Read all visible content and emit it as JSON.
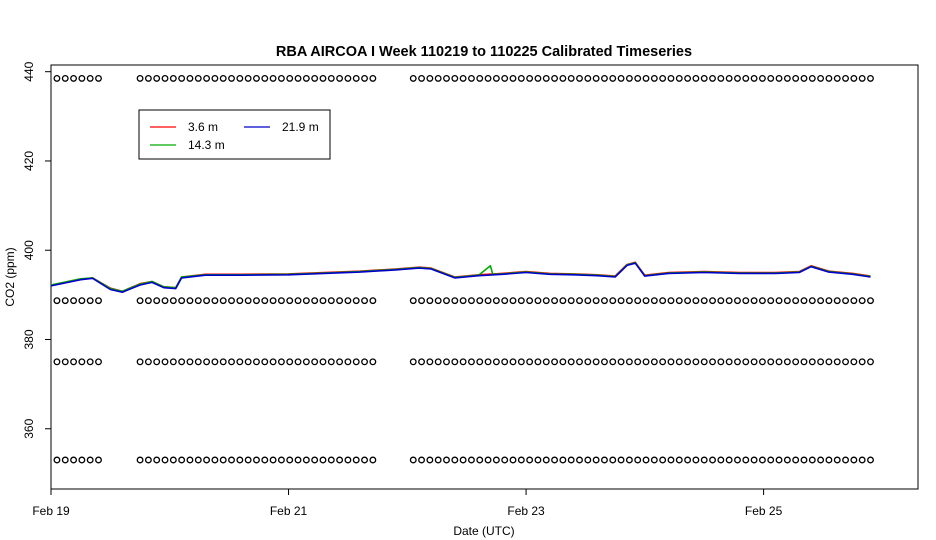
{
  "chart_data": {
    "type": "line",
    "title": "RBA AIRCOA I  Week 110219 to 110225  Calibrated Timeseries",
    "xlabel": "Date (UTC)",
    "ylabel": "CO2 (ppm)",
    "xlim": [
      0,
      7.3
    ],
    "ylim": [
      346.5,
      441.5
    ],
    "x_ticks": [
      {
        "value": 0,
        "label": "Feb 19"
      },
      {
        "value": 2,
        "label": "Feb 21"
      },
      {
        "value": 4,
        "label": "Feb 23"
      },
      {
        "value": 6,
        "label": "Feb 25"
      }
    ],
    "y_ticks": [
      {
        "value": 360,
        "label": "360"
      },
      {
        "value": 380,
        "label": "380"
      },
      {
        "value": 400,
        "label": "400"
      },
      {
        "value": 420,
        "label": "420"
      },
      {
        "value": 440,
        "label": "440"
      }
    ],
    "legend": {
      "placement": "top-left",
      "entries": [
        {
          "label": "3.6 m",
          "color": "#ff0000"
        },
        {
          "label": "21.9 m",
          "color": "#0000cc"
        },
        {
          "label": "14.3 m",
          "color": "#00aa00"
        }
      ]
    },
    "series": [
      {
        "name": "3.6 m",
        "color": "#ff0000",
        "points": [
          [
            0,
            392.2
          ],
          [
            0.25,
            393.5
          ],
          [
            0.35,
            393.8
          ],
          [
            0.5,
            391.5
          ],
          [
            0.6,
            390.8
          ],
          [
            0.75,
            392.5
          ],
          [
            0.85,
            393.0
          ],
          [
            0.95,
            391.8
          ],
          [
            1.05,
            391.6
          ],
          [
            1.1,
            394.0
          ],
          [
            1.3,
            394.6
          ],
          [
            1.6,
            394.6
          ],
          [
            2.0,
            394.7
          ],
          [
            2.3,
            395.0
          ],
          [
            2.6,
            395.3
          ],
          [
            2.9,
            395.8
          ],
          [
            3.1,
            396.2
          ],
          [
            3.2,
            396.0
          ],
          [
            3.4,
            394.0
          ],
          [
            3.6,
            394.5
          ],
          [
            3.8,
            394.8
          ],
          [
            4.0,
            395.2
          ],
          [
            4.2,
            394.8
          ],
          [
            4.4,
            394.7
          ],
          [
            4.6,
            394.5
          ],
          [
            4.75,
            394.2
          ],
          [
            4.85,
            396.8
          ],
          [
            4.92,
            397.3
          ],
          [
            5.0,
            394.4
          ],
          [
            5.2,
            395.0
          ],
          [
            5.5,
            395.2
          ],
          [
            5.8,
            395.0
          ],
          [
            6.1,
            395.0
          ],
          [
            6.3,
            395.2
          ],
          [
            6.4,
            396.5
          ],
          [
            6.55,
            395.3
          ],
          [
            6.75,
            394.8
          ],
          [
            6.9,
            394.2
          ]
        ]
      },
      {
        "name": "14.3 m",
        "color": "#00aa00",
        "points": [
          [
            0,
            392.2
          ],
          [
            0.25,
            393.6
          ],
          [
            0.35,
            393.8
          ],
          [
            0.5,
            391.4
          ],
          [
            0.6,
            390.8
          ],
          [
            0.75,
            392.4
          ],
          [
            0.85,
            393.0
          ],
          [
            0.95,
            391.8
          ],
          [
            1.05,
            391.6
          ],
          [
            1.1,
            394.0
          ],
          [
            1.3,
            394.5
          ],
          [
            1.6,
            394.5
          ],
          [
            2.0,
            394.6
          ],
          [
            2.3,
            394.9
          ],
          [
            2.6,
            395.2
          ],
          [
            2.9,
            395.7
          ],
          [
            3.1,
            396.1
          ],
          [
            3.2,
            395.9
          ],
          [
            3.4,
            393.9
          ],
          [
            3.6,
            394.4
          ],
          [
            3.7,
            396.5
          ],
          [
            3.72,
            394.6
          ],
          [
            3.8,
            394.7
          ],
          [
            4.0,
            395.1
          ],
          [
            4.2,
            394.7
          ],
          [
            4.4,
            394.6
          ],
          [
            4.6,
            394.4
          ],
          [
            4.75,
            394.1
          ],
          [
            4.85,
            396.7
          ],
          [
            4.92,
            397.2
          ],
          [
            5.0,
            394.3
          ],
          [
            5.2,
            394.9
          ],
          [
            5.5,
            395.1
          ],
          [
            5.8,
            394.9
          ],
          [
            6.1,
            394.9
          ],
          [
            6.3,
            395.1
          ],
          [
            6.4,
            396.4
          ],
          [
            6.55,
            395.2
          ],
          [
            6.75,
            394.7
          ],
          [
            6.9,
            394.1
          ]
        ]
      },
      {
        "name": "21.9 m",
        "color": "#0000cc",
        "points": [
          [
            0,
            392.0
          ],
          [
            0.25,
            393.4
          ],
          [
            0.35,
            393.7
          ],
          [
            0.5,
            391.2
          ],
          [
            0.6,
            390.6
          ],
          [
            0.75,
            392.2
          ],
          [
            0.85,
            392.8
          ],
          [
            0.95,
            391.6
          ],
          [
            1.05,
            391.4
          ],
          [
            1.1,
            393.8
          ],
          [
            1.3,
            394.4
          ],
          [
            1.6,
            394.4
          ],
          [
            2.0,
            394.5
          ],
          [
            2.3,
            394.8
          ],
          [
            2.6,
            395.1
          ],
          [
            2.9,
            395.6
          ],
          [
            3.1,
            396.0
          ],
          [
            3.2,
            395.8
          ],
          [
            3.4,
            393.8
          ],
          [
            3.6,
            394.3
          ],
          [
            3.8,
            394.6
          ],
          [
            4.0,
            395.0
          ],
          [
            4.2,
            394.6
          ],
          [
            4.4,
            394.5
          ],
          [
            4.6,
            394.3
          ],
          [
            4.75,
            394.0
          ],
          [
            4.85,
            396.6
          ],
          [
            4.92,
            397.1
          ],
          [
            5.0,
            394.2
          ],
          [
            5.2,
            394.8
          ],
          [
            5.5,
            395.0
          ],
          [
            5.8,
            394.8
          ],
          [
            6.1,
            394.8
          ],
          [
            6.3,
            395.0
          ],
          [
            6.4,
            396.3
          ],
          [
            6.55,
            395.1
          ],
          [
            6.75,
            394.6
          ],
          [
            6.9,
            394.0
          ]
        ]
      }
    ],
    "calibration_standards": [
      {
        "name": "standard-438",
        "y": 438.5,
        "x_ranges": [
          [
            0.05,
            0.45
          ],
          [
            0.75,
            2.75
          ],
          [
            3.05,
            6.95
          ]
        ],
        "spacing": 0.07
      },
      {
        "name": "standard-389",
        "y": 388.7,
        "x_ranges": [
          [
            0.05,
            0.45
          ],
          [
            0.75,
            2.75
          ],
          [
            3.05,
            6.95
          ]
        ],
        "spacing": 0.07
      },
      {
        "name": "standard-375",
        "y": 375.0,
        "x_ranges": [
          [
            0.05,
            0.45
          ],
          [
            0.75,
            2.75
          ],
          [
            3.05,
            6.95
          ]
        ],
        "spacing": 0.07
      },
      {
        "name": "standard-353",
        "y": 353.0,
        "x_ranges": [
          [
            0.05,
            0.45
          ],
          [
            0.75,
            2.75
          ],
          [
            3.05,
            6.95
          ]
        ],
        "spacing": 0.07
      }
    ]
  }
}
